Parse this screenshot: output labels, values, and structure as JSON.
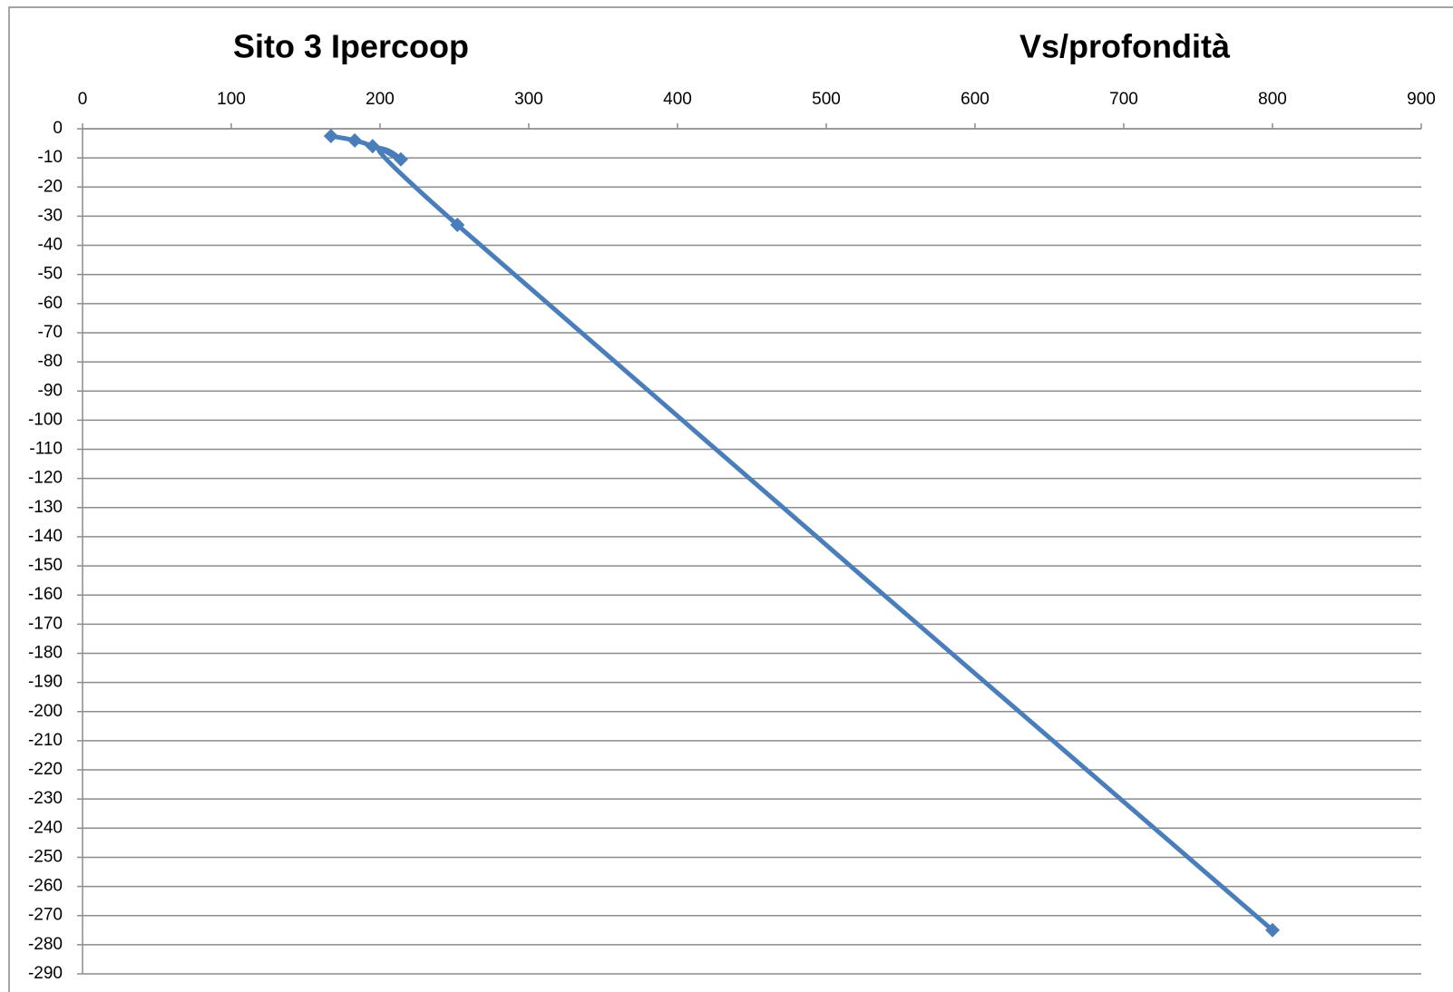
{
  "chart_data": {
    "type": "line",
    "title": "Sito 3 Ipercoop",
    "subtitle": "Vs/profondità",
    "x": [
      167,
      183,
      195,
      214,
      252,
      800
    ],
    "values": [
      -2.5,
      -4,
      -6,
      -10.5,
      -33,
      -275
    ],
    "color": "#4a7ebb",
    "smooth": true,
    "xlim": [
      0,
      900
    ],
    "xticks": [
      0,
      100,
      200,
      300,
      400,
      500,
      600,
      700,
      800,
      900
    ],
    "ylim": [
      -290,
      0
    ],
    "yticks": [
      0,
      -10,
      -20,
      -30,
      -40,
      -50,
      -60,
      -70,
      -80,
      -90,
      -100,
      -110,
      -120,
      -130,
      -140,
      -150,
      -160,
      -170,
      -180,
      -190,
      -200,
      -210,
      -220,
      -230,
      -240,
      -250,
      -260,
      -270,
      -280,
      -290
    ],
    "grid": true
  }
}
